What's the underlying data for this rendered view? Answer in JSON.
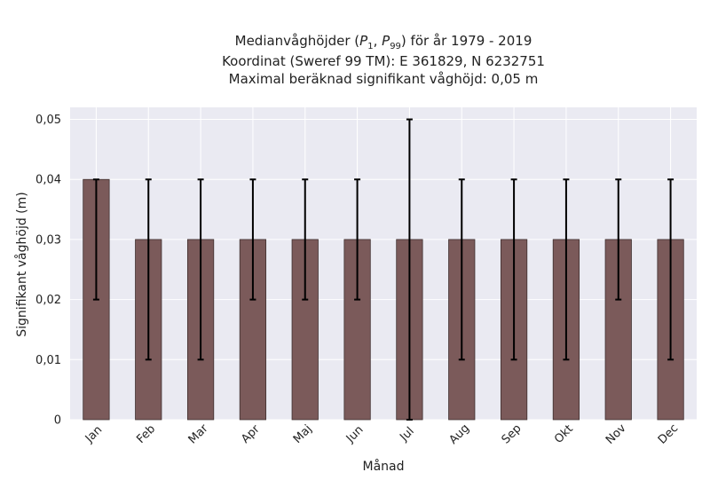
{
  "chart_data": {
    "type": "bar",
    "title_lines": [
      "Medianvåghöjder (P1, P99) för år 1979 - 2019",
      "Koordinat (Sweref 99 TM): E 361829, N 6232751",
      "Maximal beräknad signifikant våghöjd: 0,05 m"
    ],
    "xlabel": "Månad",
    "ylabel": "Signifikant våghöjd (m)",
    "categories": [
      "Jan",
      "Feb",
      "Mar",
      "Apr",
      "Maj",
      "Jun",
      "Jul",
      "Aug",
      "Sep",
      "Okt",
      "Nov",
      "Dec"
    ],
    "values": [
      0.04,
      0.03,
      0.03,
      0.03,
      0.03,
      0.03,
      0.03,
      0.03,
      0.03,
      0.03,
      0.03,
      0.03
    ],
    "error_low": [
      0.02,
      0.01,
      0.01,
      0.02,
      0.02,
      0.02,
      0.0,
      0.01,
      0.01,
      0.01,
      0.02,
      0.01
    ],
    "error_high": [
      0.04,
      0.04,
      0.04,
      0.04,
      0.04,
      0.04,
      0.05,
      0.04,
      0.04,
      0.04,
      0.04,
      0.04
    ],
    "ylim": [
      0,
      0.052
    ],
    "yticks": [
      0,
      0.01,
      0.02,
      0.03,
      0.04,
      0.05
    ],
    "ytick_labels": [
      "0",
      "0,01",
      "0,02",
      "0,03",
      "0,04",
      "0,05"
    ],
    "grid": true,
    "colors": {
      "bar": "#7b5a5a",
      "bar_edge": "#3f2f2f",
      "error": "#000000",
      "plot_bg": "#eaeaf2",
      "grid": "#ffffff"
    }
  }
}
